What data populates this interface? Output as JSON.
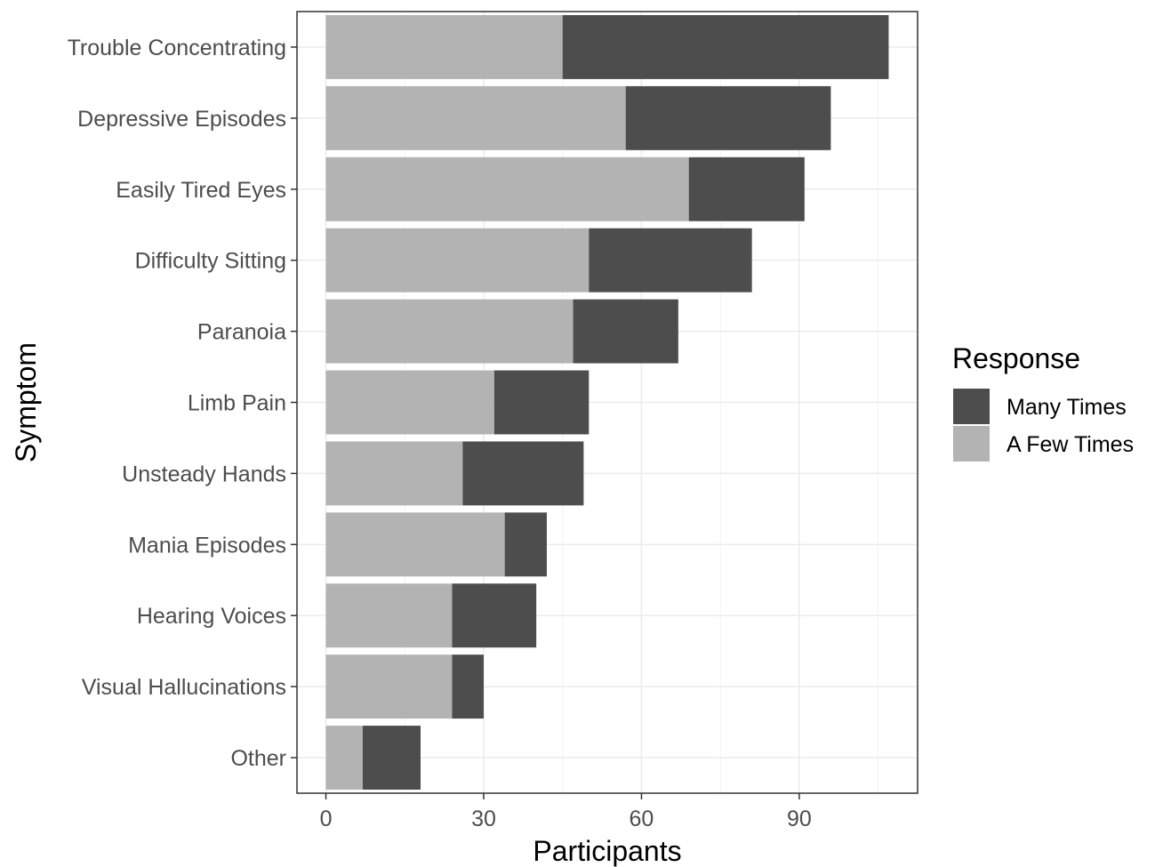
{
  "chart_data": {
    "type": "bar",
    "orientation": "horizontal",
    "stacked": true,
    "categories": [
      "Trouble Concentrating",
      "Depressive Episodes",
      "Easily Tired Eyes",
      "Difficulty Sitting",
      "Paranoia",
      "Limb Pain",
      "Unsteady Hands",
      "Mania Episodes",
      "Hearing Voices",
      "Visual Hallucinations",
      "Other"
    ],
    "series": [
      {
        "name": "A Few Times",
        "color": "#b3b3b3",
        "values": [
          45,
          57,
          69,
          50,
          47,
          32,
          26,
          34,
          24,
          24,
          7
        ]
      },
      {
        "name": "Many Times",
        "color": "#4d4d4d",
        "values": [
          62,
          39,
          22,
          31,
          20,
          18,
          23,
          8,
          16,
          6,
          11
        ]
      }
    ],
    "xlabel": "Participants",
    "ylabel": "Symptom",
    "xlim": [
      -5.5,
      112.5
    ],
    "xticks": [
      0,
      30,
      60,
      90
    ],
    "grid": true,
    "legend": {
      "title": "Response",
      "placement": "right",
      "entries": [
        "Many Times",
        "A Few Times"
      ]
    }
  }
}
